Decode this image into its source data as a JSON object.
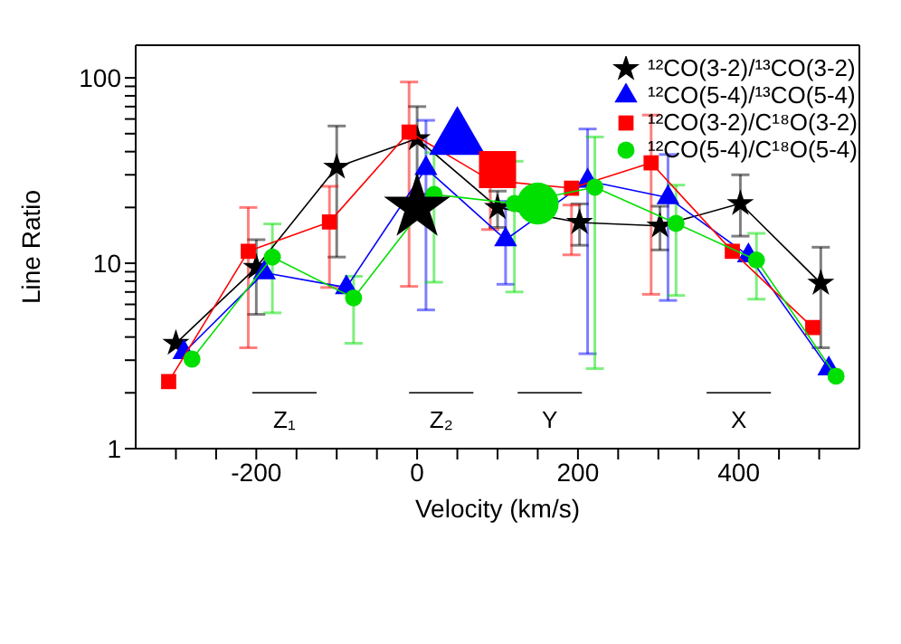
{
  "chart_data": {
    "type": "line",
    "xlabel": "Velocity (km/s)",
    "ylabel": "Line Ratio",
    "log": "y",
    "legend": "top right",
    "xlim": [
      -350,
      550
    ],
    "xticks": [
      {
        "value": -300,
        "label": null
      },
      {
        "value": -250,
        "label": null
      },
      -200,
      {
        "value": -150,
        "label": null
      },
      {
        "value": -100,
        "label": null
      },
      {
        "value": -50,
        "label": null
      },
      0,
      {
        "value": 50,
        "label": null
      },
      {
        "value": 100,
        "label": null
      },
      {
        "value": 150,
        "label": null
      },
      200,
      {
        "value": 250,
        "label": null
      },
      {
        "value": 300,
        "label": null
      },
      {
        "value": 350,
        "label": null
      },
      400,
      {
        "value": 450,
        "label": null
      },
      {
        "value": 500,
        "label": null
      }
    ],
    "ylim": [
      1,
      150
    ],
    "yticks": [
      1,
      {
        "value": 2,
        "label": null
      },
      {
        "value": 3,
        "label": null
      },
      {
        "value": 4,
        "label": null
      },
      {
        "value": 5,
        "label": null
      },
      {
        "value": 6,
        "label": null
      },
      {
        "value": 7,
        "label": null
      },
      {
        "value": 8,
        "label": null
      },
      {
        "value": 9,
        "label": null
      },
      10,
      {
        "value": 20,
        "label": null
      },
      {
        "value": 30,
        "label": null
      },
      {
        "value": 40,
        "label": null
      },
      {
        "value": 50,
        "label": null
      },
      {
        "value": 60,
        "label": null
      },
      {
        "value": 70,
        "label": null
      },
      {
        "value": 80,
        "label": null
      },
      {
        "value": 90,
        "label": null
      },
      100
    ],
    "series": [
      {
        "name": "¹²CO(3-2)/¹³CO(3-2)",
        "marker": "star",
        "color": "#000000",
        "x": [
          -300,
          -200,
          -100,
          0,
          100,
          202,
          302,
          402,
          502
        ],
        "values": [
          3.7,
          9.5,
          33,
          47,
          20,
          16.6,
          15.9,
          21,
          7.8
        ],
        "errors": [
          null,
          [
            5.3,
            13.4
          ],
          [
            10.8,
            55
          ],
          [
            23.6,
            70
          ],
          [
            15.6,
            24.5
          ],
          [
            12.5,
            20.9
          ],
          [
            11.8,
            20.3
          ],
          [
            14,
            30
          ],
          [
            3.5,
            12.2
          ]
        ]
      },
      {
        "name": "¹²CO(5-4)/¹³CO(5-4)",
        "marker": "triangle",
        "color": "#0000ff",
        "x": [
          -290,
          -190,
          -88,
          11,
          110,
          212,
          312,
          412,
          512
        ],
        "values": [
          3.3,
          8.9,
          7.4,
          32.5,
          13.4,
          27.8,
          22.6,
          11,
          2.7
        ],
        "errors": [
          null,
          null,
          null,
          [
            5.6,
            59
          ],
          [
            7.7,
            21.6
          ],
          [
            3.25,
            53
          ],
          [
            6.3,
            38.6
          ],
          null,
          null
        ]
      },
      {
        "name": "¹²CO(3-2)/C¹⁸O(3-2)",
        "marker": "square",
        "color": "#ff0000",
        "x": [
          -309,
          -210,
          -109,
          -10,
          91,
          192,
          291,
          392,
          492
        ],
        "values": [
          2.3,
          11.6,
          16.7,
          51,
          28,
          25.4,
          34.8,
          11.6,
          4.5
        ],
        "errors": [
          null,
          [
            3.5,
            20
          ],
          [
            7.4,
            26
          ],
          [
            7.5,
            95
          ],
          [
            15.2,
            38.6
          ],
          [
            11.1,
            20.6
          ],
          [
            6.8,
            63
          ],
          null,
          null
        ]
      },
      {
        "name": "¹²CO(5-4)/C¹⁸O(5-4)",
        "marker": "circle",
        "color": "#00e000",
        "x": [
          -280,
          -180,
          -79,
          21,
          121,
          221,
          322,
          422,
          521
        ],
        "values": [
          3.04,
          10.8,
          6.5,
          23.5,
          21,
          25.7,
          16.4,
          10.4,
          2.46
        ],
        "errors": [
          null,
          [
            5.4,
            16.3
          ],
          [
            3.7,
            8.5
          ],
          [
            7.9,
            39.5
          ],
          [
            7,
            35.5
          ],
          [
            2.7,
            48
          ],
          [
            6.7,
            26.4
          ],
          [
            6.4,
            14.5
          ],
          null
        ]
      },
      {
        "type": "scatter",
        "marker": "star",
        "color": "#000000",
        "x": [
          0
        ],
        "values": [
          20
        ]
      },
      {
        "type": "scatter",
        "marker": "triangle",
        "color": "#0000ff",
        "x": [
          50
        ],
        "values": [
          47
        ]
      },
      {
        "type": "scatter",
        "marker": "square",
        "color": "#ff0000",
        "x": [
          100
        ],
        "values": [
          32
        ]
      },
      {
        "type": "scatter",
        "marker": "circle",
        "color": "#00e000",
        "x": [
          150
        ],
        "values": [
          21
        ]
      },
      {
        "name": "Z₁",
        "marker": "none",
        "color": "#000000",
        "x": [
          -205,
          -125
        ],
        "values": [
          2,
          2
        ]
      },
      {
        "name": "Z₂",
        "marker": "none",
        "color": "#000000",
        "x": [
          -10,
          70
        ],
        "values": [
          2,
          2
        ]
      },
      {
        "name": "Y",
        "marker": "none",
        "color": "#000000",
        "x": [
          125,
          205
        ],
        "values": [
          2,
          2
        ]
      },
      {
        "name": "X",
        "marker": "none",
        "color": "#000000",
        "x": [
          360,
          440
        ],
        "values": [
          2,
          2
        ]
      }
    ]
  }
}
